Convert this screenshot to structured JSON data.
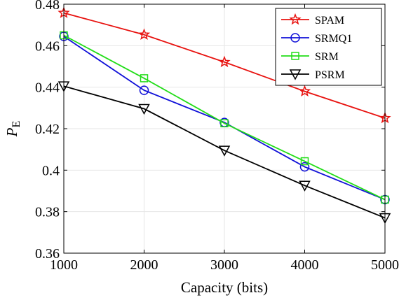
{
  "chart_data": {
    "type": "line",
    "xlabel": "Capacity (bits)",
    "ylabel": "P",
    "ylabel_sub": "E",
    "xlim": [
      1000,
      5000
    ],
    "ylim": [
      0.36,
      0.48
    ],
    "xticks": [
      1000,
      2000,
      3000,
      4000,
      5000
    ],
    "yticks": [
      0.36,
      0.38,
      0.4,
      0.42,
      0.44,
      0.46,
      0.48
    ],
    "xtick_labels": [
      "1000",
      "2000",
      "3000",
      "4000",
      "5000"
    ],
    "ytick_labels": [
      "0.36",
      "0.38",
      "0.4",
      "0.42",
      "0.44",
      "0.46",
      "0.48"
    ],
    "grid": true,
    "legend_position": "top-right",
    "x": [
      1000,
      2000,
      3000,
      4000,
      5000
    ],
    "series": [
      {
        "name": "SPAM",
        "color": "#e8120f",
        "marker": "star",
        "values": [
          0.4758,
          0.4653,
          0.4521,
          0.438,
          0.4251
        ]
      },
      {
        "name": "SRMQ1",
        "color": "#1010d8",
        "marker": "circle",
        "values": [
          0.4645,
          0.4385,
          0.423,
          0.4016,
          0.3858
        ]
      },
      {
        "name": "SRM",
        "color": "#22dd18",
        "marker": "square",
        "values": [
          0.465,
          0.4443,
          0.4226,
          0.4043,
          0.3858
        ]
      },
      {
        "name": "PSRM",
        "color": "#000000",
        "marker": "triangle-down",
        "values": [
          0.4405,
          0.4296,
          0.4095,
          0.3926,
          0.377
        ]
      }
    ]
  }
}
